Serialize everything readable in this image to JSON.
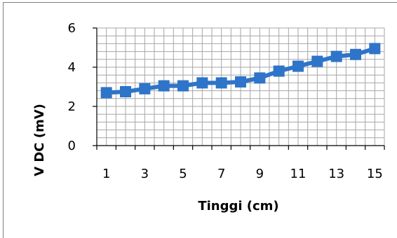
{
  "chart_data": {
    "type": "line",
    "title": "",
    "xlabel": "Tinggi (cm)",
    "ylabel": "V DC (mV)",
    "x": [
      1,
      2,
      3,
      4,
      5,
      6,
      7,
      8,
      9,
      10,
      11,
      12,
      13,
      14,
      15
    ],
    "x_tick_labels": [
      "1",
      "3",
      "5",
      "7",
      "9",
      "11",
      "13",
      "15"
    ],
    "y_tick_labels": [
      "0",
      "2",
      "4",
      "6"
    ],
    "ylim": [
      0,
      6
    ],
    "grid": true,
    "legend": "none",
    "series": [
      {
        "values": [
          2.7,
          2.75,
          2.9,
          3.05,
          3.05,
          3.2,
          3.2,
          3.25,
          3.45,
          3.8,
          4.05,
          4.3,
          4.55,
          4.65,
          4.95
        ],
        "color": "#2e74c9",
        "marker": "square"
      }
    ],
    "colors": {
      "grid": "#a6a6a6",
      "axis": "#000000",
      "frame": "#7f7f7f"
    }
  }
}
